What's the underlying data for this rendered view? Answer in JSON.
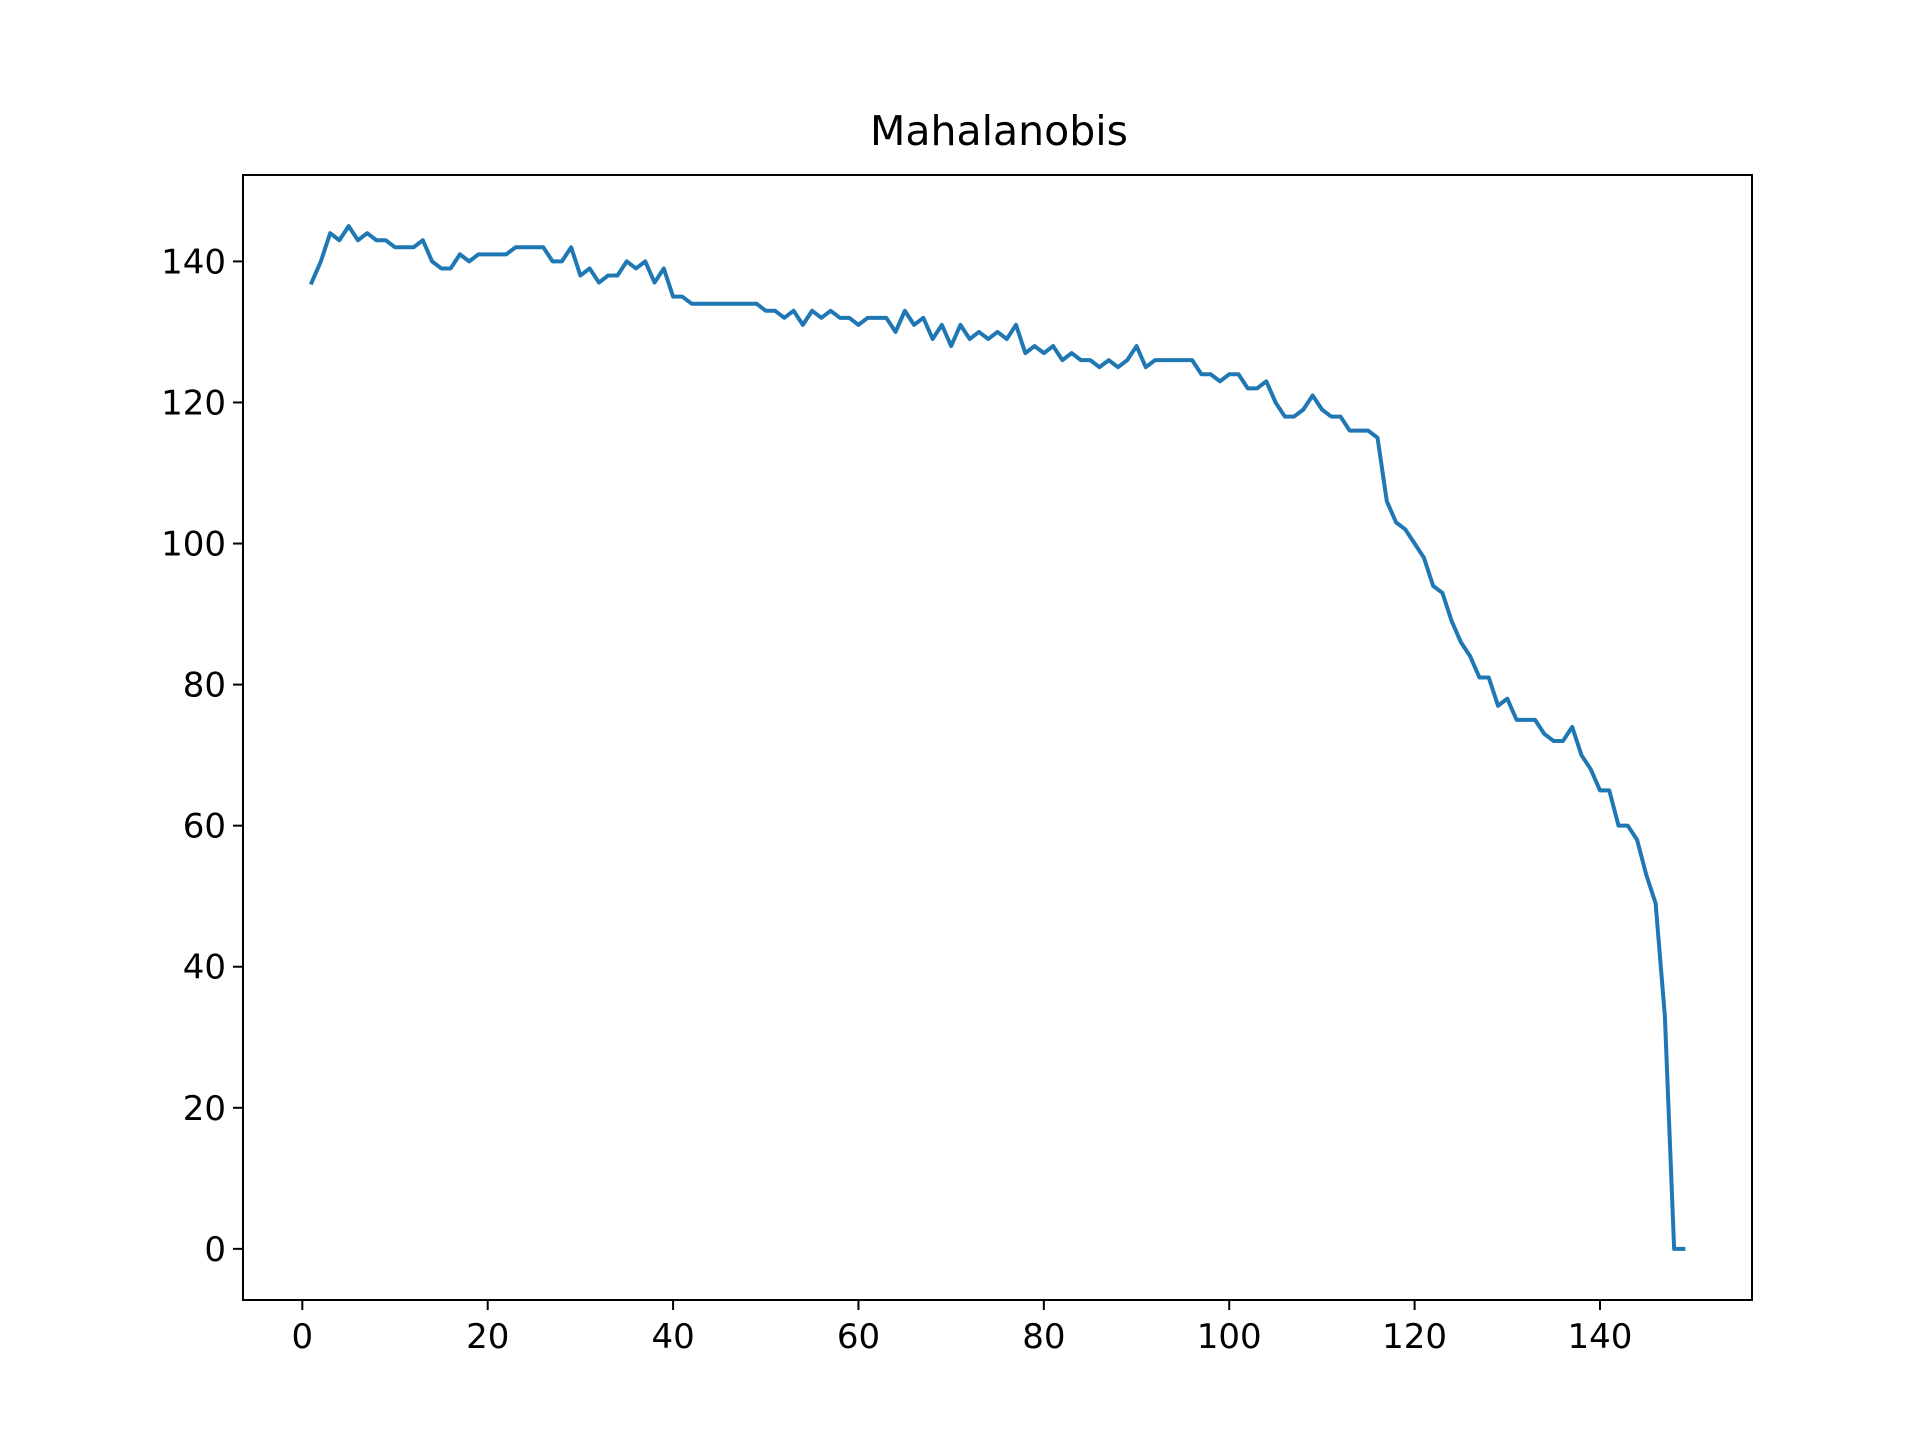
{
  "chart_data": {
    "type": "line",
    "title": "Mahalanobis",
    "xlabel": "",
    "ylabel": "",
    "xlim": [
      -6.4,
      156.4
    ],
    "ylim": [
      -7.25,
      152.25
    ],
    "xticks": [
      0,
      20,
      40,
      60,
      80,
      100,
      120,
      140
    ],
    "yticks": [
      0,
      20,
      40,
      60,
      80,
      100,
      120,
      140
    ],
    "grid": false,
    "legend": "none",
    "series": [
      {
        "color": "#1f77b4",
        "x": [
          1,
          2,
          3,
          4,
          5,
          6,
          7,
          8,
          9,
          10,
          11,
          12,
          13,
          14,
          15,
          16,
          17,
          18,
          19,
          20,
          21,
          22,
          23,
          24,
          25,
          26,
          27,
          28,
          29,
          30,
          31,
          32,
          33,
          34,
          35,
          36,
          37,
          38,
          39,
          40,
          41,
          42,
          43,
          44,
          45,
          46,
          47,
          48,
          49,
          50,
          51,
          52,
          53,
          54,
          55,
          56,
          57,
          58,
          59,
          60,
          61,
          62,
          63,
          64,
          65,
          66,
          67,
          68,
          69,
          70,
          71,
          72,
          73,
          74,
          75,
          76,
          77,
          78,
          79,
          80,
          81,
          82,
          83,
          84,
          85,
          86,
          87,
          88,
          89,
          90,
          91,
          92,
          93,
          94,
          95,
          96,
          97,
          98,
          99,
          100,
          101,
          102,
          103,
          104,
          105,
          106,
          107,
          108,
          109,
          110,
          111,
          112,
          113,
          114,
          115,
          116,
          117,
          118,
          119,
          120,
          121,
          122,
          123,
          124,
          125,
          126,
          127,
          128,
          129,
          130,
          131,
          132,
          133,
          134,
          135,
          136,
          137,
          138,
          139,
          140,
          141,
          142,
          143,
          144,
          145,
          146,
          147,
          148,
          149
        ],
        "y": [
          137,
          140,
          144,
          143,
          145,
          143,
          144,
          143,
          143,
          142,
          142,
          142,
          143,
          140,
          139,
          139,
          141,
          140,
          141,
          141,
          141,
          141,
          142,
          142,
          142,
          142,
          140,
          140,
          142,
          138,
          139,
          137,
          138,
          138,
          140,
          139,
          140,
          137,
          139,
          135,
          135,
          134,
          134,
          134,
          134,
          134,
          134,
          134,
          134,
          133,
          133,
          132,
          133,
          131,
          133,
          132,
          133,
          132,
          132,
          131,
          132,
          132,
          132,
          130,
          133,
          131,
          132,
          129,
          131,
          128,
          131,
          129,
          130,
          129,
          130,
          129,
          131,
          127,
          128,
          127,
          128,
          126,
          127,
          126,
          126,
          125,
          126,
          125,
          126,
          128,
          125,
          126,
          126,
          126,
          126,
          126,
          124,
          124,
          123,
          124,
          124,
          122,
          122,
          123,
          120,
          118,
          118,
          119,
          121,
          119,
          118,
          118,
          116,
          116,
          116,
          115,
          106,
          103,
          102,
          100,
          98,
          94,
          93,
          89,
          86,
          84,
          81,
          81,
          77,
          78,
          75,
          75,
          75,
          73,
          72,
          72,
          74,
          70,
          68,
          65,
          65,
          60,
          60,
          58,
          53,
          49,
          33,
          0,
          0
        ]
      }
    ]
  }
}
